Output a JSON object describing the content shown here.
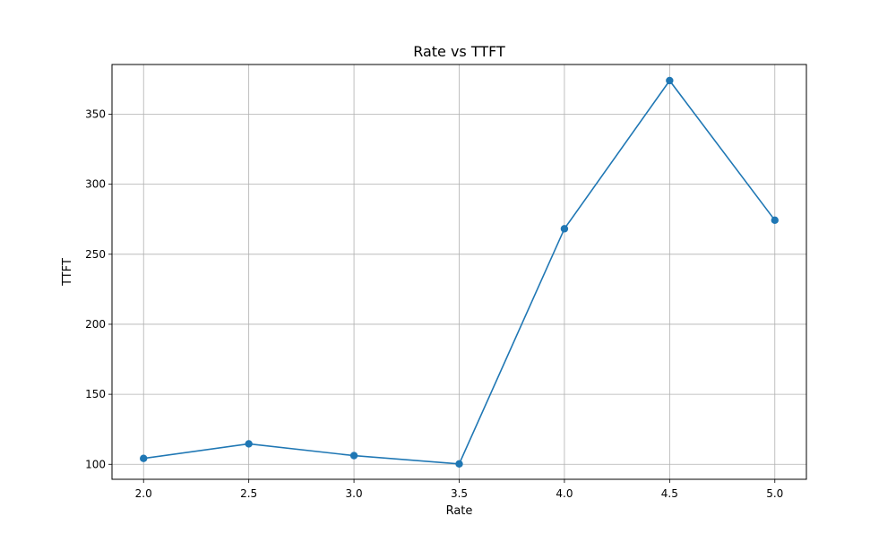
{
  "chart_data": {
    "type": "line",
    "title": "Rate vs TTFT",
    "xlabel": "Rate",
    "ylabel": "TTFT",
    "xlim": [
      1.85,
      5.15
    ],
    "ylim": [
      89.3,
      385.5
    ],
    "grid": true,
    "xticks": [
      2.0,
      2.5,
      3.0,
      3.5,
      4.0,
      4.5,
      5.0
    ],
    "xtick_labels": [
      "2.0",
      "2.5",
      "3.0",
      "3.5",
      "4.0",
      "4.5",
      "5.0"
    ],
    "yticks": [
      100,
      150,
      200,
      250,
      300,
      350
    ],
    "ytick_labels": [
      "100",
      "150",
      "200",
      "250",
      "300",
      "350"
    ],
    "series": [
      {
        "x": [
          2.0,
          2.5,
          3.0,
          3.5,
          4.0,
          4.5,
          5.0
        ],
        "values": [
          104.2,
          114.6,
          106.2,
          100.3,
          268.2,
          374.0,
          274.3
        ],
        "color": "#1f77b4",
        "marker": "circle"
      }
    ]
  }
}
